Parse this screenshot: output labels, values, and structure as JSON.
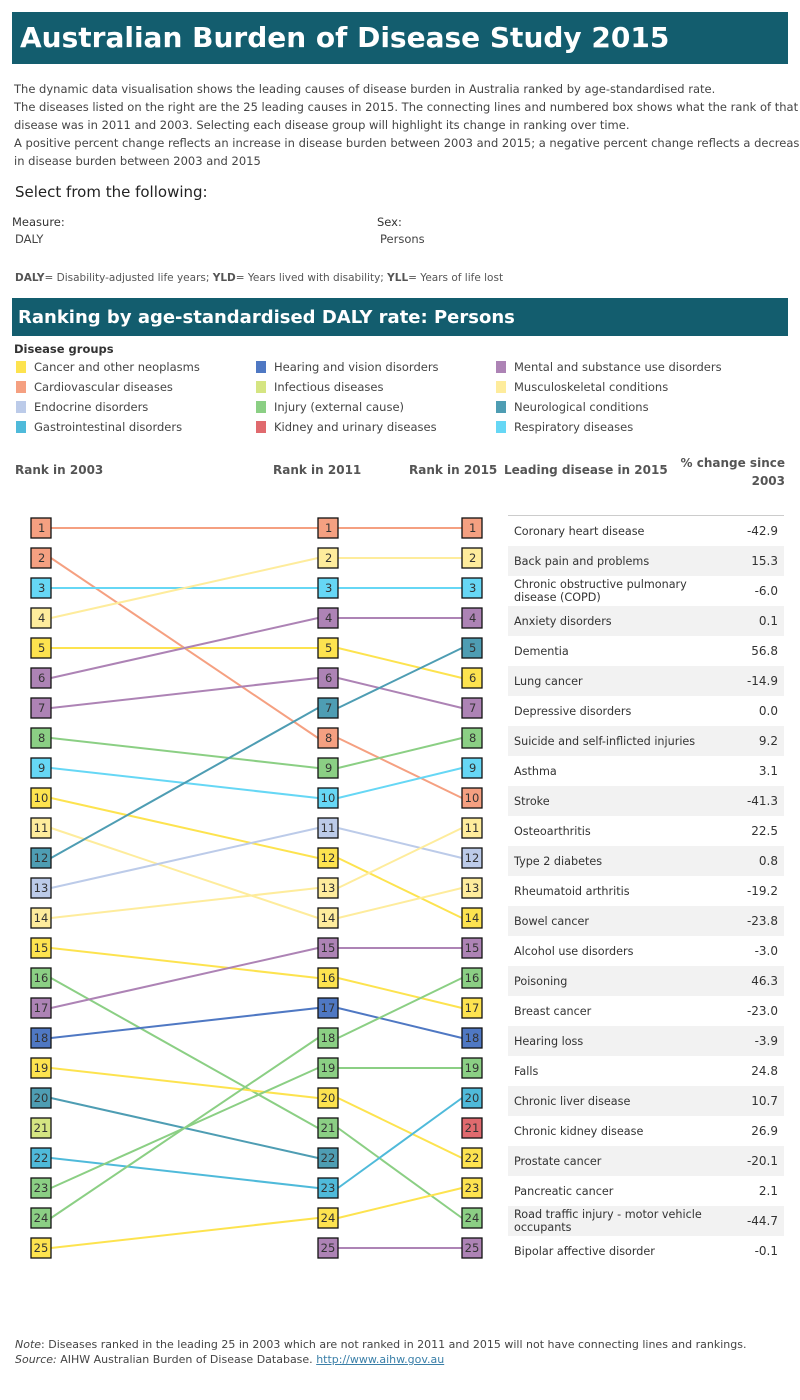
{
  "title": "Australian Burden of Disease Study 2015",
  "intro": [
    "The dynamic data visualisation shows the leading causes of disease burden in Australia ranked by age-standardised rate.",
    "The diseases listed on the right are the 25 leading causes in 2015. The connecting lines and numbered box shows what the rank of that",
    "disease was in 2011 and 2003. Selecting each disease group will highlight its change in ranking over time.",
    "A positive percent change reflects an increase in disease burden between 2003 and 2015; a negative percent change reflects a decrease",
    "in disease burden between 2003 and 2015"
  ],
  "select_heading": "Select from the following:",
  "measure": {
    "label": "Measure:",
    "value": "DALY"
  },
  "sex": {
    "label": "Sex:",
    "value": "Persons"
  },
  "abbrev": [
    {
      "b": "DALY",
      "t": "= Disability-adjusted life years; "
    },
    {
      "b": "YLD",
      "t": "= Years lived with disability; "
    },
    {
      "b": "YLL",
      "t": "= Years of life lost"
    }
  ],
  "ranking_title": "Ranking by age-standardised  DALY rate: Persons",
  "legend_title": "Disease groups",
  "groups": {
    "cancer": {
      "label": "Cancer and other neoplasms",
      "color": "#fde34f"
    },
    "cardio": {
      "label": "Cardiovascular diseases",
      "color": "#f5a081"
    },
    "endo": {
      "label": "Endocrine disorders",
      "color": "#bccbe9"
    },
    "gi": {
      "label": "Gastrointestinal disorders",
      "color": "#4fbada"
    },
    "hearing": {
      "label": "Hearing and vision disorders",
      "color": "#4f78c3"
    },
    "infect": {
      "label": "Infectious diseases",
      "color": "#d5e582"
    },
    "injury": {
      "label": "Injury (external cause)",
      "color": "#8bcf84"
    },
    "kidney": {
      "label": "Kidney and urinary diseases",
      "color": "#e06a6e"
    },
    "mental": {
      "label": "Mental and substance use disorders",
      "color": "#ad83b5"
    },
    "musc": {
      "label": "Musculoskeletal conditions",
      "color": "#feec9c"
    },
    "neuro": {
      "label": "Neurological conditions",
      "color": "#4e9db3"
    },
    "resp": {
      "label": "Respiratory diseases",
      "color": "#66d7f5"
    }
  },
  "legend_order": [
    "cancer",
    "cardio",
    "endo",
    "gi",
    "hearing",
    "infect",
    "injury",
    "kidney",
    "mental",
    "musc",
    "neuro",
    "resp"
  ],
  "columns": {
    "r2003": "Rank in 2003",
    "r2011": "Rank in 2011",
    "r2015": "Rank in 2015",
    "disease": "Leading disease in 2015",
    "change": "% change since 2003"
  },
  "chart_data": {
    "type": "bump",
    "years": [
      "2003",
      "2011",
      "2015"
    ],
    "entities": [
      {
        "group": "cardio",
        "ranks": [
          1,
          1,
          1
        ]
      },
      {
        "group": "cardio",
        "ranks": [
          2,
          8,
          10
        ]
      },
      {
        "group": "resp",
        "ranks": [
          3,
          3,
          3
        ]
      },
      {
        "group": "musc",
        "ranks": [
          4,
          2,
          2
        ]
      },
      {
        "group": "cancer",
        "ranks": [
          5,
          5,
          6
        ]
      },
      {
        "group": "mental",
        "ranks": [
          6,
          4,
          4
        ]
      },
      {
        "group": "mental",
        "ranks": [
          7,
          6,
          7
        ]
      },
      {
        "group": "injury",
        "ranks": [
          8,
          9,
          8
        ]
      },
      {
        "group": "resp",
        "ranks": [
          9,
          10,
          9
        ]
      },
      {
        "group": "cancer",
        "ranks": [
          10,
          12,
          14
        ]
      },
      {
        "group": "musc",
        "ranks": [
          11,
          14,
          13
        ]
      },
      {
        "group": "neuro",
        "ranks": [
          12,
          7,
          5
        ]
      },
      {
        "group": "endo",
        "ranks": [
          13,
          11,
          12
        ]
      },
      {
        "group": "musc",
        "ranks": [
          14,
          13,
          11
        ]
      },
      {
        "group": "cancer",
        "ranks": [
          15,
          16,
          17
        ]
      },
      {
        "group": "injury",
        "ranks": [
          16,
          21,
          24
        ]
      },
      {
        "group": "mental",
        "ranks": [
          17,
          15,
          15
        ]
      },
      {
        "group": "hearing",
        "ranks": [
          18,
          17,
          18
        ]
      },
      {
        "group": "cancer",
        "ranks": [
          19,
          20,
          22
        ]
      },
      {
        "group": "neuro",
        "ranks": [
          20,
          22,
          null
        ]
      },
      {
        "group": "infect",
        "ranks": [
          21,
          null,
          null
        ]
      },
      {
        "group": "gi",
        "ranks": [
          22,
          23,
          20
        ]
      },
      {
        "group": "injury",
        "ranks": [
          23,
          19,
          19
        ]
      },
      {
        "group": "injury",
        "ranks": [
          24,
          18,
          16
        ]
      },
      {
        "group": "cancer",
        "ranks": [
          25,
          24,
          23
        ]
      },
      {
        "group": "kidney",
        "ranks": [
          null,
          null,
          21
        ]
      },
      {
        "group": "mental",
        "ranks": [
          null,
          25,
          25
        ]
      }
    ],
    "table": [
      {
        "disease": "Coronary heart disease",
        "change": "-42.9"
      },
      {
        "disease": "Back pain and problems",
        "change": "15.3"
      },
      {
        "disease": "Chronic obstructive pulmonary disease (COPD)",
        "change": "-6.0"
      },
      {
        "disease": "Anxiety disorders",
        "change": "0.1"
      },
      {
        "disease": "Dementia",
        "change": "56.8"
      },
      {
        "disease": "Lung cancer",
        "change": "-14.9"
      },
      {
        "disease": "Depressive disorders",
        "change": "0.0"
      },
      {
        "disease": "Suicide and self-inflicted injuries",
        "change": "9.2"
      },
      {
        "disease": "Asthma",
        "change": "3.1"
      },
      {
        "disease": "Stroke",
        "change": "-41.3"
      },
      {
        "disease": "Osteoarthritis",
        "change": "22.5"
      },
      {
        "disease": "Type 2 diabetes",
        "change": "0.8"
      },
      {
        "disease": "Rheumatoid arthritis",
        "change": "-19.2"
      },
      {
        "disease": "Bowel cancer",
        "change": "-23.8"
      },
      {
        "disease": "Alcohol use disorders",
        "change": "-3.0"
      },
      {
        "disease": "Poisoning",
        "change": "46.3"
      },
      {
        "disease": "Breast cancer",
        "change": "-23.0"
      },
      {
        "disease": "Hearing loss",
        "change": "-3.9"
      },
      {
        "disease": "Falls",
        "change": "24.8"
      },
      {
        "disease": "Chronic liver disease",
        "change": "10.7"
      },
      {
        "disease": "Chronic kidney disease",
        "change": "26.9"
      },
      {
        "disease": "Prostate cancer",
        "change": "-20.1"
      },
      {
        "disease": "Pancreatic cancer",
        "change": "2.1"
      },
      {
        "disease": "Road traffic injury - motor vehicle occupants",
        "change": "-44.7"
      },
      {
        "disease": "Bipolar affective disorder",
        "change": "-0.1"
      }
    ]
  },
  "footer": {
    "note_label": "Note",
    "note": ": Diseases ranked in the leading 25 in 2003 which are not ranked in 2011 and 2015 will not have connecting lines and rankings.",
    "source_label": "Source:",
    "source": " AIHW Australian Burden of Disease Database. ",
    "link": "http://www.aihw.gov.au"
  }
}
